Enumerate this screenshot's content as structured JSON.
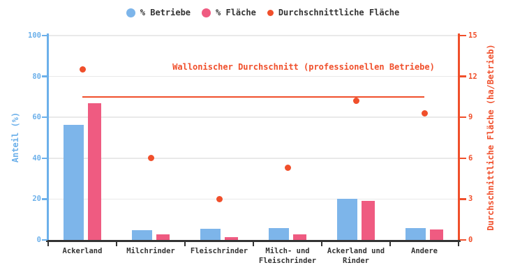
{
  "chart_data": {
    "type": "bar",
    "subtype": "grouped-bars-with-scatter-overlay",
    "categories": [
      "Ackerland",
      "Milchrinder",
      "Fleischrinder",
      "Milch- und\nFleischrinder",
      "Ackerland und\nRinder",
      "Andere"
    ],
    "series": [
      {
        "key": "betriebe-bar",
        "name": "% Betriebe",
        "type": "bar",
        "axis": "left",
        "color": "#7db5ea",
        "values": [
          56.3,
          4.8,
          5.4,
          5.9,
          20,
          5.8
        ]
      },
      {
        "key": "flaeche-bar",
        "name": "% Fläche",
        "type": "bar",
        "axis": "left",
        "color": "#ef5b81",
        "values": [
          66.9,
          2.7,
          1.4,
          2.6,
          19,
          5
        ]
      },
      {
        "key": "durchschnitt-dot",
        "name": "Durchschnittliche Fläche",
        "type": "scatter",
        "axis": "right",
        "color": "#f04f2b",
        "values": [
          12.5,
          6,
          3,
          5.3,
          10.2,
          9.3
        ]
      }
    ],
    "reference_line": {
      "label": "Wallonischer Durchschnitt (professionellen Betriebe)",
      "value": 10.5,
      "axis": "right",
      "color": "#f04f2b"
    },
    "left_axis": {
      "label": "Anteil (%)",
      "min": 0,
      "max": 100,
      "ticks": [
        0,
        20,
        40,
        60,
        80,
        100
      ],
      "color": "#6cb0ea"
    },
    "right_axis": {
      "label": "Durchschnittliche Fläche (ha/Betrieb)",
      "min": 0,
      "max": 15,
      "ticks": [
        0,
        3,
        6,
        9,
        12,
        15
      ],
      "color": "#f04f2b"
    },
    "x_axis_color": "#333333",
    "grid": true,
    "grid_color": "#e9e9e9",
    "text_color": "#333333",
    "legend_position": "top"
  }
}
